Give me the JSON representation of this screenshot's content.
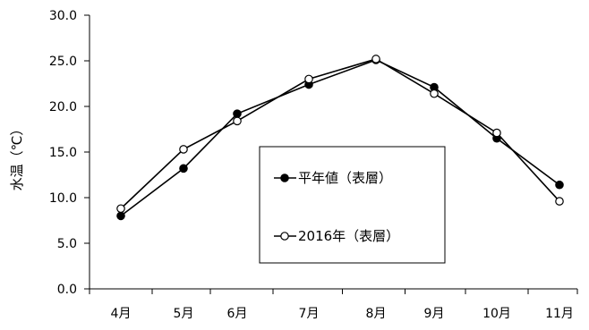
{
  "chart_data": {
    "type": "line",
    "categories": [
      "4月",
      "5月",
      "6月",
      "7月",
      "8月",
      "9月",
      "10月",
      "11月"
    ],
    "ylabel": "水温（℃）",
    "ylim": [
      0,
      30
    ],
    "y_ticks": [
      "0.0",
      "5.0",
      "10.0",
      "15.0",
      "20.0",
      "25.0",
      "30.0"
    ],
    "grid": false,
    "legend_position": "center-right, inside plot",
    "series": [
      {
        "name": "平年値（表層）",
        "marker": "filled-circle",
        "color": "#000000",
        "values": [
          8.0,
          13.2,
          19.2,
          22.4,
          25.1,
          22.1,
          16.5,
          11.4
        ]
      },
      {
        "name": "2016年（表層）",
        "marker": "open-circle",
        "color": "#000000",
        "values": [
          8.8,
          15.3,
          18.4,
          23.0,
          25.2,
          21.4,
          17.1,
          9.6
        ]
      }
    ]
  }
}
